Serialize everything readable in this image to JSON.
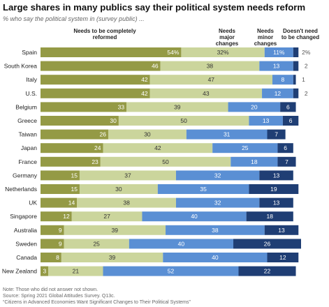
{
  "title": "Large shares in many publics say their political system needs reform",
  "subtitle": "% who say the political system in (survey public) ...",
  "notes": [
    "Note: Those who did not answer not shown.",
    "Source: Spring 2021 Global Attitudes Survey. Q13c.",
    "“Citizens in Advanced Economies Want Significant Changes to Their Political Systems”"
  ],
  "colors": {
    "completely_reformed": "#949a45",
    "major_changes": "#cbd59c",
    "minor_changes": "#5a8fd4",
    "no_change": "#1f3e74"
  },
  "chart_data": {
    "type": "bar",
    "orientation": "horizontal",
    "stacked": true,
    "categories": [
      "Spain",
      "South Korea",
      "Italy",
      "U.S.",
      "Belgium",
      "Greece",
      "Taiwan",
      "Japan",
      "France",
      "Germany",
      "Netherlands",
      "UK",
      "Singapore",
      "Australia",
      "Sweden",
      "Canada",
      "New Zealand"
    ],
    "series": [
      {
        "name": "Needs to be completely reformed",
        "values": [
          54,
          46,
          42,
          42,
          33,
          30,
          26,
          24,
          23,
          15,
          15,
          14,
          12,
          9,
          9,
          8,
          3
        ]
      },
      {
        "name": "Needs major changes",
        "values": [
          32,
          38,
          47,
          43,
          39,
          50,
          30,
          42,
          50,
          37,
          30,
          38,
          27,
          39,
          25,
          39,
          21
        ]
      },
      {
        "name": "Needs minor changes",
        "values": [
          11,
          13,
          8,
          12,
          20,
          13,
          31,
          25,
          18,
          32,
          35,
          32,
          40,
          38,
          40,
          40,
          52
        ]
      },
      {
        "name": "Doesn't need to be changed",
        "values": [
          2,
          2,
          1,
          2,
          6,
          6,
          7,
          6,
          7,
          13,
          19,
          13,
          18,
          13,
          26,
          12,
          22
        ]
      }
    ],
    "value_labels": [
      [
        "54%",
        "32%",
        "11%",
        "2%"
      ],
      [
        "46",
        "38",
        "13",
        "2"
      ],
      [
        "42",
        "47",
        "8",
        "1"
      ],
      [
        "42",
        "43",
        "12",
        "2"
      ],
      [
        "33",
        "39",
        "20",
        "6"
      ],
      [
        "30",
        "50",
        "13",
        "6"
      ],
      [
        "26",
        "30",
        "31",
        "7"
      ],
      [
        "24",
        "42",
        "25",
        "6"
      ],
      [
        "23",
        "50",
        "18",
        "7"
      ],
      [
        "15",
        "37",
        "32",
        "13"
      ],
      [
        "15",
        "30",
        "35",
        "19"
      ],
      [
        "14",
        "38",
        "32",
        "13"
      ],
      [
        "12",
        "27",
        "40",
        "18"
      ],
      [
        "9",
        "39",
        "38",
        "13"
      ],
      [
        "9",
        "25",
        "40",
        "26"
      ],
      [
        "8",
        "39",
        "40",
        "12"
      ],
      [
        "3",
        "21",
        "52",
        "22"
      ]
    ],
    "xlim": [
      0,
      100
    ],
    "legend": "column headers above bars"
  }
}
